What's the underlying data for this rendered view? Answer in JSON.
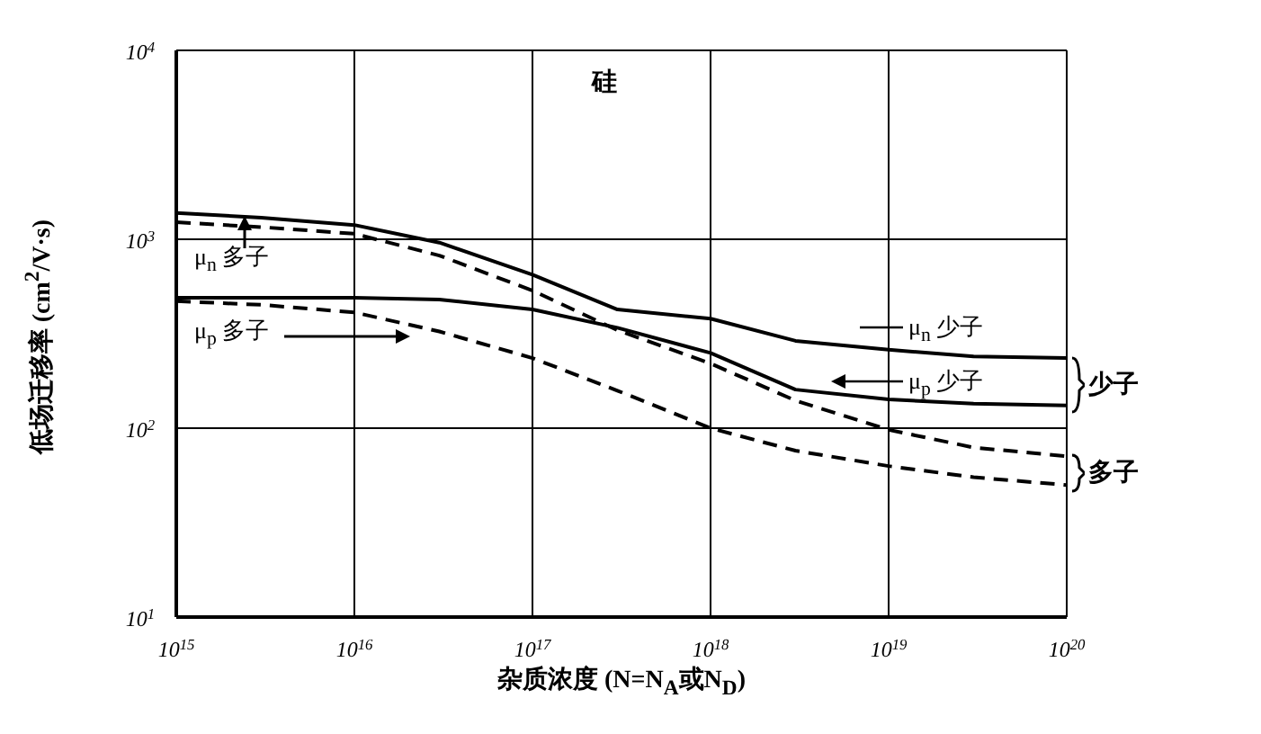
{
  "chart_data": {
    "type": "line",
    "xlabel": "杂质浓度 (N=N$_{A}$或N$_{D}$)",
    "ylabel": "低场迁移率 (cm$^{2}$/V·s)",
    "log": "xy",
    "grid": true,
    "legend": "right",
    "marker": "none",
    "xlim": [
      1000000000000000.0,
      1e+20
    ],
    "xticks": [
      {
        "value": 1000000000000000.0,
        "label": "10$^{15}$"
      },
      {
        "value": 1e+16,
        "label": "10$^{16}$"
      },
      {
        "value": 1e+17,
        "label": "10$^{17}$"
      },
      {
        "value": 1e+18,
        "label": "10$^{18}$"
      },
      {
        "value": 1e+19,
        "label": "10$^{19}$"
      },
      {
        "value": 1e+20,
        "label": "10$^{20}$"
      }
    ],
    "ylim": [
      10,
      10000
    ],
    "yticks": [
      {
        "value": 10,
        "label": "10$^{1}$"
      },
      {
        "value": 100,
        "label": "10$^{2}$"
      },
      {
        "value": 1000,
        "label": "10$^{3}$"
      },
      {
        "value": 10000,
        "label": "10$^{4}$"
      }
    ],
    "annotations": [
      "硅",
      "少子",
      "多子"
    ],
    "series": [
      {
        "name": "μ$_{n}$ 少子",
        "color": "#000000",
        "line_style": "solid",
        "x": [
          1000000000000000.0,
          3000000000000000.0,
          1e+16,
          3e+16,
          1e+17,
          3e+17,
          1e+18,
          3e+18,
          1e+19,
          3e+19,
          1e+20
        ],
        "values": [
          1380,
          1300,
          1190,
          960,
          650,
          425,
          380,
          290,
          260,
          240,
          235
        ]
      },
      {
        "name": "μ$_{n}$ 多子",
        "color": "#000000",
        "line_style": "dashed",
        "x": [
          1000000000000000.0,
          3000000000000000.0,
          1e+16,
          3e+16,
          1e+17,
          3e+17,
          1e+18,
          3e+18,
          1e+19,
          3e+19,
          1e+20
        ],
        "values": [
          1230,
          1160,
          1070,
          820,
          535,
          330,
          220,
          140,
          98,
          79,
          71
        ]
      },
      {
        "name": "μ$_{p}$ 少子",
        "color": "#000000",
        "line_style": "solid",
        "x": [
          1000000000000000.0,
          1e+16,
          3e+16,
          1e+17,
          3e+17,
          1e+18,
          3e+18,
          1e+19,
          3e+19,
          1e+20
        ],
        "values": [
          490,
          490,
          480,
          425,
          340,
          250,
          160,
          142,
          135,
          132
        ]
      },
      {
        "name": "μ$_{p}$ 多子",
        "color": "#000000",
        "line_style": "dashed",
        "x": [
          1000000000000000.0,
          3000000000000000.0,
          1e+16,
          3e+16,
          1e+17,
          3e+17,
          1e+18,
          3e+18,
          1e+19,
          3e+19,
          1e+20
        ],
        "values": [
          470,
          450,
          410,
          325,
          235,
          158,
          100,
          76,
          63,
          55,
          50
        ]
      }
    ]
  }
}
